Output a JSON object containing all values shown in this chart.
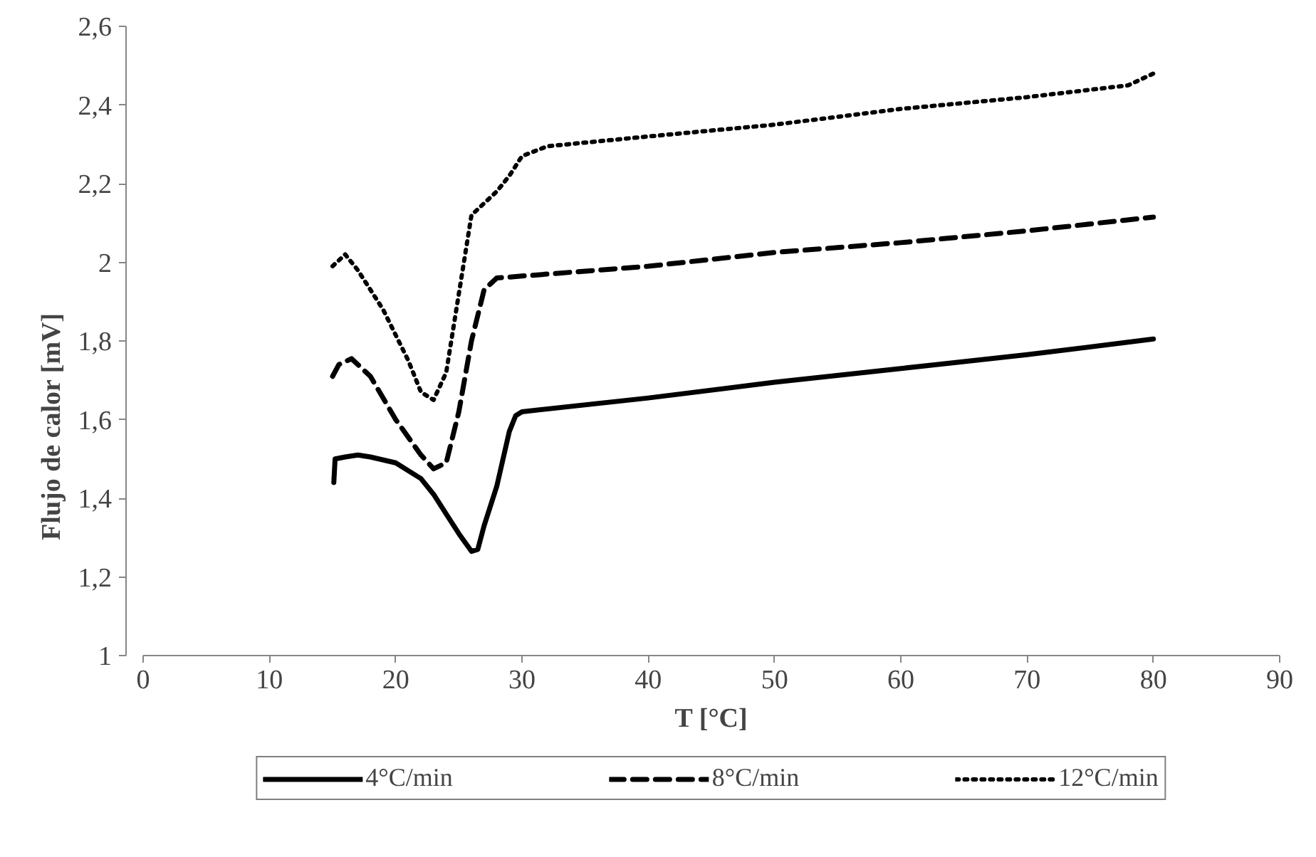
{
  "chart_data": {
    "type": "line",
    "xlabel": "T [°C]",
    "ylabel": "Flujo de calor [mV]",
    "xlim": [
      0,
      90
    ],
    "xticks": [
      0,
      10,
      20,
      30,
      40,
      50,
      60,
      70,
      80,
      90
    ],
    "ylim": [
      1,
      2.6
    ],
    "yticks": [
      1,
      {
        "value": 1.2,
        "label": "1,2"
      },
      {
        "value": 1.4,
        "label": "1,4"
      },
      {
        "value": 1.6,
        "label": "1,6"
      },
      {
        "value": 1.8,
        "label": "1,8"
      },
      2,
      {
        "value": 2.2,
        "label": "2,2"
      },
      {
        "value": 2.4,
        "label": "2,4"
      },
      {
        "value": 2.6,
        "label": "2,6"
      }
    ],
    "grid": false,
    "legend": "bottom",
    "marker": "none",
    "series": [
      {
        "name": "4°C/min",
        "color": "#000000",
        "line_style": "solid",
        "x": [
          15.1,
          15.2,
          16,
          17,
          18,
          20,
          22,
          23,
          24,
          25,
          26,
          26.5,
          27,
          28,
          29,
          29.5,
          30,
          40,
          50,
          60,
          70,
          80
        ],
        "values": [
          1.44,
          1.5,
          1.505,
          1.51,
          1.505,
          1.49,
          1.45,
          1.41,
          1.36,
          1.31,
          1.265,
          1.27,
          1.33,
          1.43,
          1.57,
          1.61,
          1.62,
          1.655,
          1.695,
          1.73,
          1.765,
          1.805
        ]
      },
      {
        "name": "8°C/min",
        "color": "#000000",
        "line_style": "dashed",
        "x": [
          15,
          15.5,
          16.5,
          18,
          20,
          22,
          23,
          24,
          25,
          26,
          27,
          28,
          30,
          40,
          50,
          60,
          70,
          80
        ],
        "values": [
          1.71,
          1.74,
          1.755,
          1.71,
          1.6,
          1.51,
          1.475,
          1.49,
          1.62,
          1.8,
          1.93,
          1.96,
          1.965,
          1.99,
          2.025,
          2.05,
          2.08,
          2.115
        ]
      },
      {
        "name": "12°C/min",
        "color": "#000000",
        "line_style": "dotted",
        "x": [
          15,
          16,
          17,
          19,
          21,
          22,
          23,
          24,
          25,
          26,
          27,
          28,
          29,
          30,
          32,
          40,
          50,
          60,
          70,
          78,
          80
        ],
        "values": [
          1.99,
          2.02,
          1.98,
          1.88,
          1.75,
          1.67,
          1.65,
          1.72,
          1.92,
          2.12,
          2.15,
          2.18,
          2.22,
          2.27,
          2.295,
          2.32,
          2.35,
          2.39,
          2.42,
          2.45,
          2.48
        ]
      }
    ]
  }
}
